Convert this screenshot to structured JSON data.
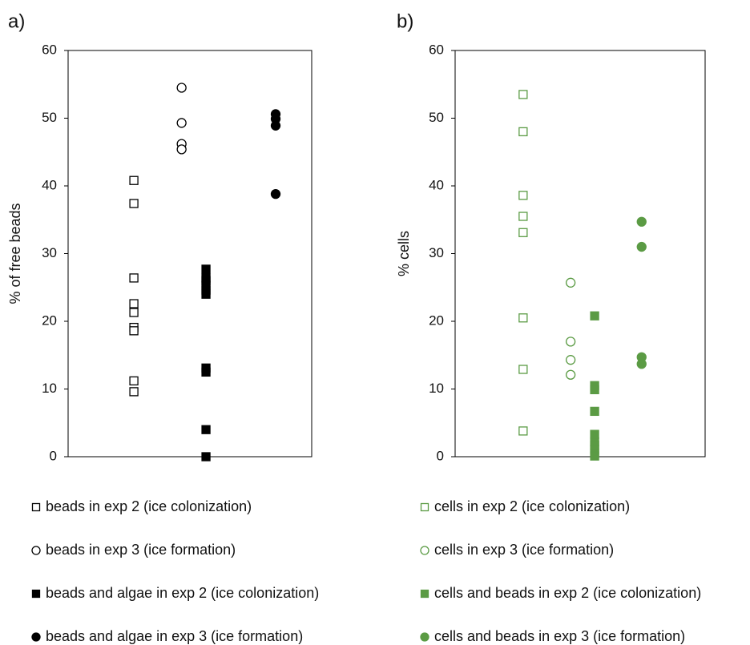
{
  "chart_data": [
    {
      "type": "scatter",
      "panel_label": "a)",
      "ylabel": "% of free beads",
      "xlim": [
        0,
        5
      ],
      "ylim": [
        0,
        60
      ],
      "yticks": [
        0,
        10,
        20,
        30,
        40,
        50,
        60
      ],
      "series": [
        {
          "name": "beads in exp 2 (ice colonization)",
          "color": "#000000",
          "marker": "square",
          "filled": false,
          "x": [
            1.35,
            1.35,
            1.35,
            1.35,
            1.35,
            1.35,
            1.35,
            1.35,
            1.35
          ],
          "values": [
            40.8,
            37.4,
            26.4,
            22.6,
            21.3,
            19.1,
            18.6,
            11.2,
            9.6
          ]
        },
        {
          "name": "beads in exp 3 (ice formation)",
          "color": "#000000",
          "marker": "circle",
          "filled": false,
          "x": [
            2.33,
            2.33,
            2.33,
            2.33
          ],
          "values": [
            54.5,
            49.3,
            46.2,
            45.4
          ]
        },
        {
          "name": "beads and algae in exp 2 (ice colonization)",
          "color": "#000000",
          "marker": "square",
          "filled": true,
          "x": [
            2.83,
            2.83,
            2.83,
            2.83,
            2.83,
            2.83,
            2.83,
            2.83,
            2.83,
            2.83
          ],
          "values": [
            27.7,
            26.4,
            26.0,
            25.3,
            24.6,
            24.0,
            13.1,
            12.5,
            4.0,
            0
          ]
        },
        {
          "name": "beads and algae in exp 3 (ice formation)",
          "color": "#000000",
          "marker": "circle",
          "filled": true,
          "x": [
            4.26,
            4.26,
            4.26,
            4.26
          ],
          "values": [
            50.6,
            49.9,
            48.9,
            38.8
          ]
        }
      ]
    },
    {
      "type": "scatter",
      "panel_label": "b)",
      "ylabel": "% cells",
      "xlim": [
        0,
        5
      ],
      "ylim": [
        0,
        60
      ],
      "yticks": [
        0,
        10,
        20,
        30,
        40,
        50,
        60
      ],
      "series": [
        {
          "name": "cells in exp 2 (ice colonization)",
          "color": "#5b9b44",
          "marker": "square",
          "filled": false,
          "x": [
            1.36,
            1.36,
            1.36,
            1.36,
            1.36,
            1.36,
            1.36,
            1.36
          ],
          "values": [
            53.5,
            48.0,
            38.6,
            35.5,
            33.1,
            20.5,
            12.9,
            3.8
          ]
        },
        {
          "name": "cells in exp 3 (ice formation)",
          "color": "#5b9b44",
          "marker": "circle",
          "filled": false,
          "x": [
            2.31,
            2.31,
            2.31,
            2.31
          ],
          "values": [
            25.7,
            17.0,
            14.3,
            12.1
          ]
        },
        {
          "name": "cells and beads in exp 2 (ice colonization)",
          "color": "#5b9b44",
          "marker": "square",
          "filled": true,
          "x": [
            2.79,
            2.79,
            2.79,
            2.79,
            2.79,
            2.79,
            2.79,
            2.79,
            2.79,
            2.79
          ],
          "values": [
            20.8,
            10.5,
            9.9,
            6.7,
            3.3,
            2.2,
            1.7,
            1.1,
            0.5,
            0.1
          ]
        },
        {
          "name": "cells and beads in exp 3 (ice formation)",
          "color": "#5b9b44",
          "marker": "circle",
          "filled": true,
          "x": [
            3.73,
            3.73,
            3.73,
            3.73
          ],
          "values": [
            34.7,
            31.0,
            14.7,
            13.7
          ]
        }
      ]
    }
  ]
}
